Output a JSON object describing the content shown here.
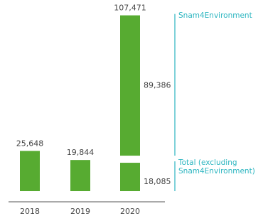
{
  "chart_data": {
    "type": "bar",
    "stacked": true,
    "categories": [
      "2018",
      "2019",
      "2020"
    ],
    "series": [
      {
        "name": "Total (excluding Snam4Environment)",
        "color": "#57ab31",
        "values": [
          25648,
          19844,
          18085
        ],
        "value_labels": [
          "25,648",
          "19,844",
          "18,085"
        ]
      },
      {
        "name": "Snam4Environment",
        "color": "#57ab31",
        "values": [
          null,
          null,
          89386
        ],
        "value_labels": [
          null,
          null,
          "89,386"
        ]
      }
    ],
    "totals": {
      "values": [
        null,
        null,
        107471
      ],
      "value_labels": [
        null,
        null,
        "107,471"
      ]
    },
    "legend_color": "#2bb5c0",
    "ylim": [
      0,
      110000
    ]
  }
}
